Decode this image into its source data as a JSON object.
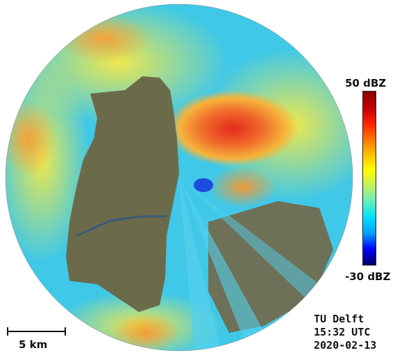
{
  "legend": {
    "max_label": "50 dBZ",
    "min_label": "-30 dBZ",
    "colors": [
      "#00006e",
      "#0000ff",
      "#00a0ff",
      "#00e0ff",
      "#60f0c0",
      "#c0f060",
      "#ffff00",
      "#ffc000",
      "#ff7000",
      "#ff2000",
      "#c00000",
      "#8c0000"
    ]
  },
  "info": {
    "source": "TU Delft",
    "time": "15:32 UTC",
    "date": "2020-02-13"
  },
  "scale": {
    "label": "5 km"
  },
  "map_colors": {
    "radar_cyan": "#3fc8e8",
    "radar_yellow": "#e6e34a",
    "radar_orange": "#f3a23a",
    "radar_red": "#e8321e",
    "land": "#6b6b4c",
    "blue_spot": "#1f4ce0"
  }
}
